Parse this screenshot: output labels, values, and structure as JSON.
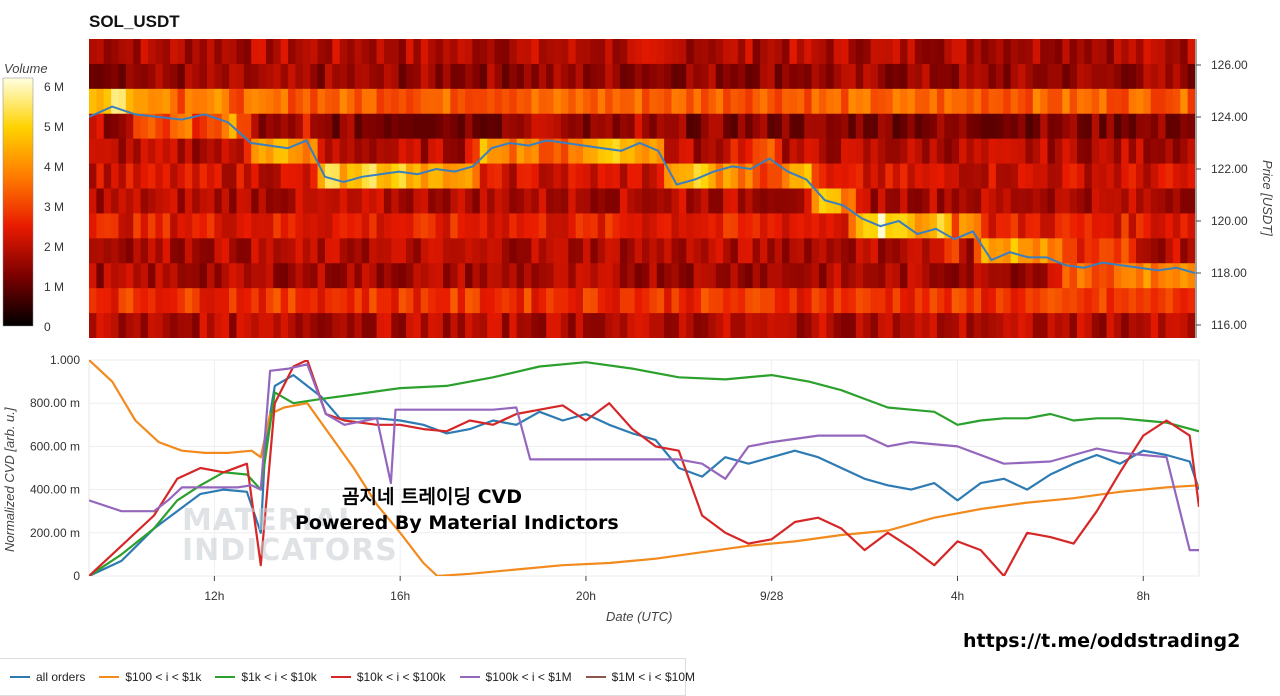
{
  "title": "SOL_USDT",
  "heatmap": {
    "colorbar_title": "Volume",
    "colorbar_ticks": [
      "6 M",
      "5 M",
      "4 M",
      "3 M",
      "2 M",
      "1 M",
      "0"
    ],
    "price_axis_title": "Price [USDT]",
    "price_ticks": [
      "126.00",
      "124.00",
      "122.00",
      "120.00",
      "118.00",
      "116.00"
    ]
  },
  "cvd": {
    "y_axis_title": "Normalized CVD [arb. u.]",
    "y_ticks": [
      "1.000",
      "800.00 m",
      "600.00 m",
      "400.00 m",
      "200.00 m",
      "0"
    ],
    "x_ticks": [
      "12h",
      "16h",
      "20h",
      "9/28",
      "4h",
      "8h"
    ],
    "x_axis_title": "Date (UTC)"
  },
  "overlay_text": {
    "line1": "곰지네 트레이딩 CVD",
    "line2": "Powered By Material Indictors"
  },
  "watermark": {
    "line1": "MATERIAL",
    "line2": "INDICATORS"
  },
  "link": "https://t.me/oddstrading2",
  "legend": [
    {
      "label": "all orders",
      "color": "#2e7bb4"
    },
    {
      "label": "$100 < i < $1k",
      "color": "#f28a1e"
    },
    {
      "label": "$1k < i < $10k",
      "color": "#2ca02c"
    },
    {
      "label": "$10k < i < $100k",
      "color": "#d62728"
    },
    {
      "label": "$100k < i < $1M",
      "color": "#9467bd"
    },
    {
      "label": "$1M < i < $10M",
      "color": "#8c564b"
    }
  ],
  "chart_data": [
    {
      "type": "heatmap",
      "title": "SOL_USDT",
      "ylabel": "Price [USDT]",
      "ylim": [
        115.5,
        127.0
      ],
      "colorbar": {
        "label": "Volume",
        "range": [
          0,
          6000000
        ]
      },
      "price_series": {
        "name": "Price",
        "x_hours": [
          9.3,
          9.8,
          10.3,
          10.8,
          11.3,
          11.8,
          12.3,
          12.8,
          13.2,
          13.6,
          14.0,
          14.4,
          14.8,
          15.2,
          15.6,
          16.0,
          16.4,
          16.8,
          17.2,
          17.6,
          18.0,
          18.4,
          18.8,
          19.2,
          19.6,
          20.0,
          20.4,
          20.8,
          21.2,
          21.6,
          22.0,
          22.4,
          22.8,
          23.2,
          23.6,
          24.0,
          24.4,
          24.8,
          25.2,
          25.6,
          26.0,
          26.4,
          26.8,
          27.2,
          27.6,
          28.0,
          28.4,
          28.8,
          29.2,
          29.6,
          30.0,
          30.4,
          30.8,
          31.2,
          31.6,
          32.0,
          32.4,
          32.8,
          33.2
        ],
        "values": [
          124.0,
          124.4,
          124.1,
          124.0,
          123.9,
          124.1,
          123.8,
          123.0,
          122.9,
          122.8,
          123.1,
          121.7,
          121.5,
          121.7,
          121.8,
          121.9,
          121.8,
          122.0,
          121.9,
          122.1,
          122.8,
          123.0,
          122.9,
          123.1,
          123.0,
          122.9,
          122.8,
          122.7,
          123.0,
          122.7,
          121.4,
          121.6,
          121.9,
          122.1,
          122.0,
          122.4,
          121.9,
          121.6,
          120.8,
          120.6,
          120.1,
          119.8,
          120.0,
          119.5,
          119.7,
          119.3,
          119.6,
          118.5,
          118.8,
          118.6,
          118.6,
          118.3,
          118.2,
          118.4,
          118.3,
          118.2,
          118.1,
          118.2,
          118.0
        ]
      }
    },
    {
      "type": "line",
      "xlabel": "Date (UTC)",
      "ylabel": "Normalized CVD [arb. u.]",
      "ylim": [
        0,
        1
      ],
      "x_ticks": [
        "12h",
        "16h",
        "20h",
        "9/28",
        "4h",
        "8h"
      ],
      "series": [
        {
          "name": "all orders",
          "x": [
            9.3,
            10.0,
            10.7,
            11.2,
            11.7,
            12.2,
            12.7,
            13.0,
            13.1,
            13.3,
            13.7,
            14.3,
            14.7,
            15.5,
            16.0,
            16.5,
            17.0,
            17.5,
            18.0,
            18.5,
            19.0,
            19.5,
            20.0,
            20.5,
            21.0,
            21.5,
            22.0,
            22.5,
            23.0,
            23.5,
            24.0,
            24.5,
            25.0,
            25.5,
            26.0,
            26.5,
            27.0,
            27.5,
            28.0,
            28.5,
            29.0,
            29.5,
            30.0,
            30.5,
            31.0,
            31.5,
            32.0,
            32.5,
            33.0,
            33.2
          ],
          "values": [
            0.0,
            0.07,
            0.22,
            0.3,
            0.38,
            0.4,
            0.39,
            0.2,
            0.62,
            0.88,
            0.93,
            0.83,
            0.73,
            0.73,
            0.72,
            0.7,
            0.66,
            0.68,
            0.72,
            0.7,
            0.76,
            0.72,
            0.75,
            0.7,
            0.66,
            0.63,
            0.5,
            0.46,
            0.55,
            0.52,
            0.55,
            0.58,
            0.55,
            0.5,
            0.45,
            0.42,
            0.4,
            0.43,
            0.35,
            0.43,
            0.45,
            0.4,
            0.47,
            0.52,
            0.56,
            0.52,
            0.58,
            0.56,
            0.53,
            0.4
          ]
        },
        {
          "name": "$100 < i < $1k",
          "x": [
            9.3,
            9.8,
            10.3,
            10.8,
            11.3,
            11.8,
            12.3,
            12.8,
            13.0,
            13.2,
            13.5,
            14.0,
            14.5,
            15.0,
            15.5,
            16.0,
            16.5,
            16.8,
            17.5,
            18.5,
            19.5,
            20.5,
            21.5,
            22.5,
            23.5,
            24.5,
            25.5,
            26.5,
            27.5,
            28.5,
            29.5,
            30.5,
            31.5,
            32.5,
            33.2
          ],
          "values": [
            1.0,
            0.9,
            0.72,
            0.62,
            0.58,
            0.57,
            0.57,
            0.58,
            0.55,
            0.75,
            0.78,
            0.8,
            0.65,
            0.5,
            0.33,
            0.2,
            0.06,
            0.0,
            0.01,
            0.03,
            0.05,
            0.06,
            0.08,
            0.11,
            0.14,
            0.16,
            0.19,
            0.21,
            0.27,
            0.31,
            0.34,
            0.36,
            0.39,
            0.41,
            0.42
          ]
        },
        {
          "name": "$1k < i < $10k",
          "x": [
            9.3,
            10.0,
            10.7,
            11.2,
            11.7,
            12.2,
            12.7,
            13.0,
            13.3,
            13.7,
            14.3,
            15.0,
            16.0,
            17.0,
            18.0,
            19.0,
            20.0,
            21.0,
            22.0,
            23.0,
            24.0,
            24.8,
            25.5,
            26.0,
            26.5,
            27.0,
            27.5,
            28.0,
            28.5,
            29.0,
            29.5,
            30.0,
            30.5,
            31.0,
            31.5,
            32.0,
            32.5,
            33.2
          ],
          "values": [
            0.0,
            0.1,
            0.22,
            0.35,
            0.42,
            0.48,
            0.47,
            0.4,
            0.85,
            0.8,
            0.82,
            0.84,
            0.87,
            0.88,
            0.92,
            0.97,
            0.99,
            0.96,
            0.92,
            0.91,
            0.93,
            0.9,
            0.86,
            0.82,
            0.78,
            0.77,
            0.76,
            0.7,
            0.72,
            0.73,
            0.73,
            0.75,
            0.72,
            0.73,
            0.73,
            0.72,
            0.71,
            0.67
          ]
        },
        {
          "name": "$10k < i < $100k",
          "x": [
            9.3,
            10.0,
            10.7,
            11.2,
            11.7,
            12.2,
            12.7,
            13.0,
            13.3,
            13.7,
            14.0,
            14.4,
            14.8,
            15.5,
            16.0,
            16.5,
            17.0,
            17.5,
            18.0,
            18.5,
            19.0,
            19.5,
            20.0,
            20.5,
            21.0,
            21.5,
            22.0,
            22.5,
            23.0,
            23.5,
            24.0,
            24.5,
            25.0,
            25.5,
            26.0,
            26.5,
            27.0,
            27.5,
            28.0,
            28.5,
            29.0,
            29.5,
            30.0,
            30.5,
            31.0,
            31.5,
            32.0,
            32.5,
            33.0,
            33.2
          ],
          "values": [
            0.0,
            0.14,
            0.28,
            0.45,
            0.5,
            0.48,
            0.52,
            0.05,
            0.8,
            0.97,
            1.0,
            0.75,
            0.72,
            0.7,
            0.7,
            0.68,
            0.67,
            0.72,
            0.7,
            0.75,
            0.77,
            0.79,
            0.72,
            0.8,
            0.68,
            0.6,
            0.58,
            0.28,
            0.2,
            0.15,
            0.17,
            0.25,
            0.27,
            0.22,
            0.12,
            0.2,
            0.13,
            0.05,
            0.16,
            0.12,
            0.0,
            0.2,
            0.18,
            0.15,
            0.3,
            0.48,
            0.65,
            0.72,
            0.65,
            0.32
          ]
        },
        {
          "name": "$100k < i < $1M",
          "x": [
            9.3,
            10.0,
            10.7,
            11.0,
            11.3,
            12.0,
            12.5,
            12.8,
            13.0,
            13.2,
            13.6,
            14.0,
            14.4,
            14.8,
            15.5,
            15.8,
            15.9,
            16.0,
            17.0,
            18.0,
            18.5,
            18.8,
            19.0,
            20.0,
            21.0,
            22.0,
            22.5,
            23.0,
            23.5,
            24.0,
            25.0,
            26.0,
            26.5,
            27.0,
            28.0,
            29.0,
            30.0,
            30.5,
            31.0,
            31.5,
            32.0,
            32.5,
            33.0,
            33.2
          ],
          "values": [
            0.35,
            0.3,
            0.3,
            0.35,
            0.41,
            0.41,
            0.41,
            0.42,
            0.4,
            0.95,
            0.96,
            0.98,
            0.75,
            0.7,
            0.73,
            0.43,
            0.77,
            0.77,
            0.77,
            0.77,
            0.78,
            0.54,
            0.54,
            0.54,
            0.54,
            0.54,
            0.52,
            0.45,
            0.6,
            0.62,
            0.65,
            0.65,
            0.6,
            0.62,
            0.6,
            0.52,
            0.53,
            0.56,
            0.59,
            0.57,
            0.56,
            0.55,
            0.12,
            0.12
          ]
        },
        {
          "name": "$1M < i < $10M",
          "x": [],
          "values": []
        }
      ]
    }
  ]
}
